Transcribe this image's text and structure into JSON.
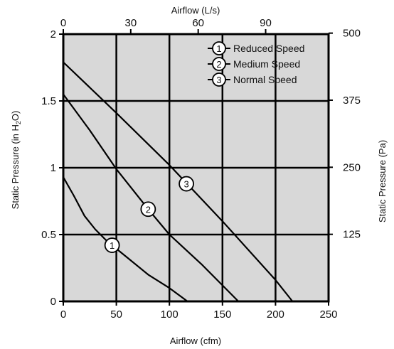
{
  "chart_data": {
    "type": "line",
    "xlabel": "Airflow (cfm)",
    "x2label": "Airflow (L/s)",
    "ylabel": "Static Pressure (in H2O)",
    "ylabel_parts": {
      "pre": "Static Pressure (in H",
      "sub": "2",
      "post": "O)"
    },
    "y2label": "Static Pressure (Pa)",
    "xlim": [
      0,
      250
    ],
    "ylim": [
      0,
      2
    ],
    "grid": true,
    "legend_position": "top-right",
    "x_ticks": [
      "0",
      "50",
      "100",
      "150",
      "200",
      "250"
    ],
    "x_tick_values": [
      0,
      50,
      100,
      150,
      200,
      250
    ],
    "y_ticks": [
      "0",
      "0.5",
      "1",
      "1.5",
      "2"
    ],
    "y_tick_values": [
      0,
      0.5,
      1,
      1.5,
      2
    ],
    "x2_ticks": [
      "0",
      "30",
      "60",
      "90"
    ],
    "x2_tick_values": [
      0,
      30,
      60,
      90
    ],
    "y2_ticks": [
      "125",
      "250",
      "375",
      "500"
    ],
    "y2_tick_values": [
      125,
      250,
      375,
      500
    ],
    "series": [
      {
        "name": "Reduced Speed",
        "marker": "1",
        "marker_at": [
          46,
          0.42
        ],
        "x": [
          0,
          10,
          20,
          30,
          40,
          46,
          60,
          80,
          100,
          117
        ],
        "y": [
          0.93,
          0.79,
          0.64,
          0.54,
          0.46,
          0.42,
          0.33,
          0.2,
          0.1,
          0
        ]
      },
      {
        "name": "Medium Speed",
        "marker": "2",
        "marker_at": [
          80,
          0.69
        ],
        "x": [
          0,
          25,
          50,
          80,
          100,
          130,
          150,
          165
        ],
        "y": [
          1.55,
          1.28,
          0.99,
          0.69,
          0.5,
          0.28,
          0.12,
          0
        ]
      },
      {
        "name": "Normal Speed",
        "marker": "3",
        "marker_at": [
          116,
          0.88
        ],
        "x": [
          0,
          50,
          100,
          150,
          200,
          216
        ],
        "y": [
          1.79,
          1.41,
          1.02,
          0.6,
          0.16,
          0
        ]
      }
    ]
  }
}
